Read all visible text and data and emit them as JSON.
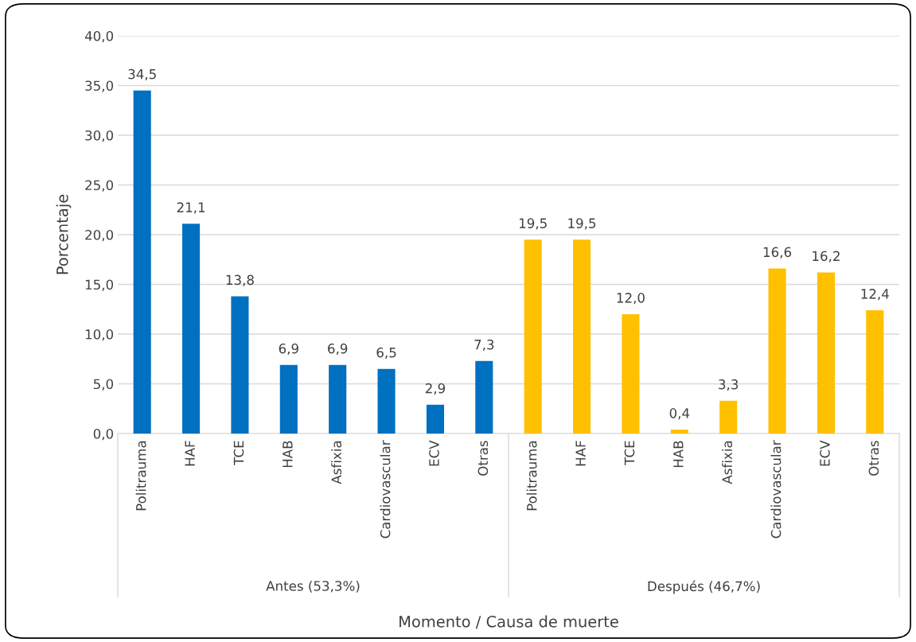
{
  "chart_data": {
    "type": "bar",
    "xlabel": "Momento / Causa de muerte",
    "ylabel": "Porcentaje",
    "categories": [
      "Politrauma",
      "HAF",
      "TCE",
      "HAB",
      "Asfixia",
      "Cardiovascular",
      "ECV",
      "Otras",
      "Politrauma",
      "HAF",
      "TCE",
      "HAB",
      "Asfixia",
      "Cardiovascular",
      "ECV",
      "Otras"
    ],
    "values": [
      34.5,
      21.1,
      13.8,
      6.9,
      6.9,
      6.5,
      2.9,
      7.3,
      19.5,
      19.5,
      12.0,
      0.4,
      3.3,
      16.6,
      16.2,
      12.4
    ],
    "value_labels": [
      "34,5",
      "21,1",
      "13,8",
      "6,9",
      "6,9",
      "6,5",
      "2,9",
      "7,3",
      "19,5",
      "19,5",
      "12,0",
      "0,4",
      "3,3",
      "16,6",
      "16,2",
      "12,4"
    ],
    "colors": [
      "#0070c0",
      "#0070c0",
      "#0070c0",
      "#0070c0",
      "#0070c0",
      "#0070c0",
      "#0070c0",
      "#0070c0",
      "#ffc000",
      "#ffc000",
      "#ffc000",
      "#ffc000",
      "#ffc000",
      "#ffc000",
      "#ffc000",
      "#ffc000"
    ],
    "annotations": [
      "Antes (53,3%)",
      "Después (46,7%)"
    ],
    "ylim": [
      0,
      40
    ],
    "yticks": [
      {
        "value": 0,
        "label": "0,0"
      },
      {
        "value": 5,
        "label": "5,0"
      },
      {
        "value": 10,
        "label": "10,0"
      },
      {
        "value": 15,
        "label": "15,0"
      },
      {
        "value": 20,
        "label": "20,0"
      },
      {
        "value": 25,
        "label": "25,0"
      },
      {
        "value": 30,
        "label": "30,0"
      },
      {
        "value": 35,
        "label": "35,0"
      },
      {
        "value": 40,
        "label": "40,0"
      }
    ],
    "grid": "y"
  }
}
